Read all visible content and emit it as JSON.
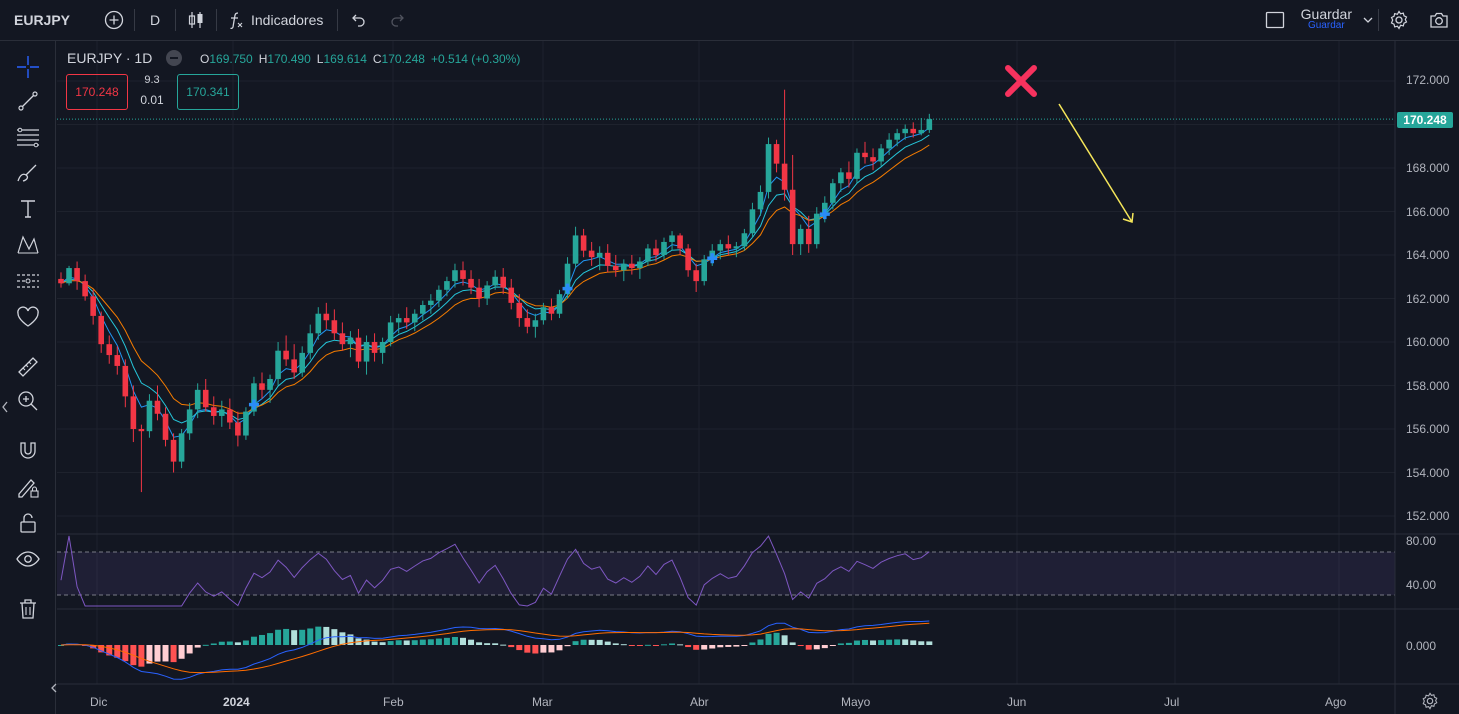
{
  "topbar": {
    "symbol": "EURJPY",
    "interval": "D",
    "indicators_label": "Indicadores",
    "save_label": "Guardar",
    "save_sublabel": "Guardar"
  },
  "legend": {
    "title": "EURJPY · 1D",
    "open_label": "O",
    "open": "169.750",
    "high_label": "H",
    "high": "170.490",
    "low_label": "L",
    "low": "169.614",
    "close_label": "C",
    "close": "170.248",
    "change": "+0.514 (+0.30%)",
    "sell_price": "170.248",
    "buy_price": "170.341",
    "spread_top": "9.3",
    "spread_bottom": "0.01"
  },
  "price_axis": [
    "172.000",
    "168.000",
    "166.000",
    "164.000",
    "162.000",
    "160.000",
    "158.000",
    "156.000",
    "154.000",
    "152.000"
  ],
  "last_price_tag": "170.248",
  "rsi_axis": [
    "80.00",
    "40.00"
  ],
  "macd_axis": [
    "0.000"
  ],
  "time_axis": [
    "Dic",
    "2024",
    "Feb",
    "Mar",
    "Abr",
    "Mayo",
    "Jun",
    "Jul",
    "Ago"
  ],
  "colors": {
    "up": "#26a69a",
    "down": "#f23645",
    "bg": "#131722",
    "annotation_x": "#f7325e",
    "annotation_arrow": "#f5e65a"
  },
  "chart_data": {
    "type": "candlestick",
    "symbol": "EURJPY",
    "interval": "1D",
    "ylim": [
      151,
      173
    ],
    "ohlc": [
      {
        "o": 162.9,
        "h": 163.2,
        "l": 162.5,
        "c": 162.7
      },
      {
        "o": 162.7,
        "h": 163.5,
        "l": 162.6,
        "c": 163.4
      },
      {
        "o": 163.4,
        "h": 163.7,
        "l": 162.4,
        "c": 162.8
      },
      {
        "o": 162.8,
        "h": 163.1,
        "l": 161.9,
        "c": 162.1
      },
      {
        "o": 162.1,
        "h": 162.4,
        "l": 160.8,
        "c": 161.2
      },
      {
        "o": 161.2,
        "h": 161.4,
        "l": 159.5,
        "c": 159.9
      },
      {
        "o": 159.9,
        "h": 160.3,
        "l": 159.0,
        "c": 159.4
      },
      {
        "o": 159.4,
        "h": 159.8,
        "l": 158.5,
        "c": 158.9
      },
      {
        "o": 158.9,
        "h": 159.2,
        "l": 157.0,
        "c": 157.5
      },
      {
        "o": 157.5,
        "h": 158.0,
        "l": 155.4,
        "c": 156.0
      },
      {
        "o": 156.0,
        "h": 156.2,
        "l": 153.1,
        "c": 155.9
      },
      {
        "o": 155.9,
        "h": 157.6,
        "l": 155.6,
        "c": 157.3
      },
      {
        "o": 157.3,
        "h": 158.0,
        "l": 156.4,
        "c": 156.7
      },
      {
        "o": 156.7,
        "h": 157.0,
        "l": 155.2,
        "c": 155.5
      },
      {
        "o": 155.5,
        "h": 155.8,
        "l": 154.0,
        "c": 154.5
      },
      {
        "o": 154.5,
        "h": 156.0,
        "l": 154.2,
        "c": 155.8
      },
      {
        "o": 155.8,
        "h": 157.2,
        "l": 155.5,
        "c": 156.9
      },
      {
        "o": 156.9,
        "h": 158.1,
        "l": 156.5,
        "c": 157.8
      },
      {
        "o": 157.8,
        "h": 158.3,
        "l": 156.8,
        "c": 157.0
      },
      {
        "o": 157.0,
        "h": 157.5,
        "l": 156.2,
        "c": 156.6
      },
      {
        "o": 156.6,
        "h": 157.3,
        "l": 156.1,
        "c": 156.9
      },
      {
        "o": 156.9,
        "h": 157.4,
        "l": 156.0,
        "c": 156.3
      },
      {
        "o": 156.3,
        "h": 156.8,
        "l": 155.2,
        "c": 155.7
      },
      {
        "o": 155.7,
        "h": 157.0,
        "l": 155.5,
        "c": 156.8
      },
      {
        "o": 156.8,
        "h": 158.4,
        "l": 156.6,
        "c": 158.1
      },
      {
        "o": 158.1,
        "h": 158.6,
        "l": 157.4,
        "c": 157.8
      },
      {
        "o": 157.8,
        "h": 158.5,
        "l": 157.2,
        "c": 158.3
      },
      {
        "o": 158.3,
        "h": 160.0,
        "l": 158.0,
        "c": 159.6
      },
      {
        "o": 159.6,
        "h": 160.3,
        "l": 158.9,
        "c": 159.2
      },
      {
        "o": 159.2,
        "h": 159.9,
        "l": 158.3,
        "c": 158.6
      },
      {
        "o": 158.6,
        "h": 159.8,
        "l": 158.4,
        "c": 159.5
      },
      {
        "o": 159.5,
        "h": 160.8,
        "l": 159.2,
        "c": 160.4
      },
      {
        "o": 160.4,
        "h": 161.6,
        "l": 160.1,
        "c": 161.3
      },
      {
        "o": 161.3,
        "h": 161.8,
        "l": 160.6,
        "c": 161.0
      },
      {
        "o": 161.0,
        "h": 161.5,
        "l": 160.1,
        "c": 160.4
      },
      {
        "o": 160.4,
        "h": 160.9,
        "l": 159.6,
        "c": 159.9
      },
      {
        "o": 159.9,
        "h": 160.5,
        "l": 159.3,
        "c": 160.2
      },
      {
        "o": 160.2,
        "h": 160.6,
        "l": 158.8,
        "c": 159.1
      },
      {
        "o": 159.1,
        "h": 160.3,
        "l": 158.5,
        "c": 160.0
      },
      {
        "o": 160.0,
        "h": 160.4,
        "l": 159.1,
        "c": 159.5
      },
      {
        "o": 159.5,
        "h": 160.2,
        "l": 159.0,
        "c": 160.0
      },
      {
        "o": 160.0,
        "h": 161.2,
        "l": 159.8,
        "c": 160.9
      },
      {
        "o": 160.9,
        "h": 161.3,
        "l": 160.4,
        "c": 161.1
      },
      {
        "o": 161.1,
        "h": 161.6,
        "l": 160.6,
        "c": 160.9
      },
      {
        "o": 160.9,
        "h": 161.5,
        "l": 160.5,
        "c": 161.3
      },
      {
        "o": 161.3,
        "h": 161.9,
        "l": 161.0,
        "c": 161.7
      },
      {
        "o": 161.7,
        "h": 162.2,
        "l": 161.3,
        "c": 161.9
      },
      {
        "o": 161.9,
        "h": 162.6,
        "l": 161.6,
        "c": 162.4
      },
      {
        "o": 162.4,
        "h": 163.0,
        "l": 162.1,
        "c": 162.8
      },
      {
        "o": 162.8,
        "h": 163.6,
        "l": 162.5,
        "c": 163.3
      },
      {
        "o": 163.3,
        "h": 163.7,
        "l": 162.6,
        "c": 162.9
      },
      {
        "o": 162.9,
        "h": 163.3,
        "l": 162.2,
        "c": 162.5
      },
      {
        "o": 162.5,
        "h": 162.9,
        "l": 161.6,
        "c": 162.0
      },
      {
        "o": 162.0,
        "h": 162.8,
        "l": 161.7,
        "c": 162.6
      },
      {
        "o": 162.6,
        "h": 163.3,
        "l": 162.4,
        "c": 163.0
      },
      {
        "o": 163.0,
        "h": 163.4,
        "l": 162.2,
        "c": 162.5
      },
      {
        "o": 162.5,
        "h": 162.9,
        "l": 161.5,
        "c": 161.8
      },
      {
        "o": 161.8,
        "h": 162.2,
        "l": 160.7,
        "c": 161.1
      },
      {
        "o": 161.1,
        "h": 161.5,
        "l": 160.4,
        "c": 160.7
      },
      {
        "o": 160.7,
        "h": 161.3,
        "l": 160.2,
        "c": 161.0
      },
      {
        "o": 161.0,
        "h": 161.8,
        "l": 160.8,
        "c": 161.6
      },
      {
        "o": 161.6,
        "h": 162.0,
        "l": 161.0,
        "c": 161.3
      },
      {
        "o": 161.3,
        "h": 162.4,
        "l": 161.1,
        "c": 162.2
      },
      {
        "o": 162.2,
        "h": 163.9,
        "l": 162.0,
        "c": 163.6
      },
      {
        "o": 163.6,
        "h": 165.3,
        "l": 163.4,
        "c": 164.9
      },
      {
        "o": 164.9,
        "h": 165.2,
        "l": 163.9,
        "c": 164.2
      },
      {
        "o": 164.2,
        "h": 164.6,
        "l": 163.5,
        "c": 163.9
      },
      {
        "o": 163.9,
        "h": 164.4,
        "l": 163.3,
        "c": 164.1
      },
      {
        "o": 164.1,
        "h": 164.5,
        "l": 163.2,
        "c": 163.5
      },
      {
        "o": 163.5,
        "h": 164.0,
        "l": 163.0,
        "c": 163.3
      },
      {
        "o": 163.3,
        "h": 163.8,
        "l": 162.8,
        "c": 163.6
      },
      {
        "o": 163.6,
        "h": 164.0,
        "l": 163.1,
        "c": 163.4
      },
      {
        "o": 163.4,
        "h": 163.9,
        "l": 162.9,
        "c": 163.7
      },
      {
        "o": 163.7,
        "h": 164.5,
        "l": 163.5,
        "c": 164.3
      },
      {
        "o": 164.3,
        "h": 164.7,
        "l": 163.7,
        "c": 164.0
      },
      {
        "o": 164.0,
        "h": 164.8,
        "l": 163.8,
        "c": 164.6
      },
      {
        "o": 164.6,
        "h": 165.1,
        "l": 164.2,
        "c": 164.9
      },
      {
        "o": 164.9,
        "h": 165.0,
        "l": 164.0,
        "c": 164.3
      },
      {
        "o": 164.3,
        "h": 164.5,
        "l": 163.0,
        "c": 163.3
      },
      {
        "o": 163.3,
        "h": 163.6,
        "l": 162.3,
        "c": 162.8
      },
      {
        "o": 162.8,
        "h": 164.0,
        "l": 162.6,
        "c": 163.8
      },
      {
        "o": 163.8,
        "h": 164.5,
        "l": 163.5,
        "c": 164.2
      },
      {
        "o": 164.2,
        "h": 164.7,
        "l": 163.8,
        "c": 164.5
      },
      {
        "o": 164.5,
        "h": 164.9,
        "l": 164.0,
        "c": 164.3
      },
      {
        "o": 164.3,
        "h": 164.6,
        "l": 163.9,
        "c": 164.4
      },
      {
        "o": 164.4,
        "h": 165.2,
        "l": 164.2,
        "c": 165.0
      },
      {
        "o": 165.0,
        "h": 166.4,
        "l": 164.8,
        "c": 166.1
      },
      {
        "o": 166.1,
        "h": 167.2,
        "l": 165.8,
        "c": 166.9
      },
      {
        "o": 166.9,
        "h": 169.4,
        "l": 166.6,
        "c": 169.1
      },
      {
        "o": 169.1,
        "h": 169.3,
        "l": 167.8,
        "c": 168.2
      },
      {
        "o": 168.2,
        "h": 171.6,
        "l": 166.5,
        "c": 167.0
      },
      {
        "o": 167.0,
        "h": 168.6,
        "l": 164.0,
        "c": 164.5
      },
      {
        "o": 164.5,
        "h": 165.4,
        "l": 164.0,
        "c": 165.2
      },
      {
        "o": 165.2,
        "h": 165.8,
        "l": 164.1,
        "c": 164.5
      },
      {
        "o": 164.5,
        "h": 166.2,
        "l": 164.3,
        "c": 165.9
      },
      {
        "o": 165.9,
        "h": 166.7,
        "l": 165.5,
        "c": 166.4
      },
      {
        "o": 166.4,
        "h": 167.5,
        "l": 166.1,
        "c": 167.3
      },
      {
        "o": 167.3,
        "h": 168.0,
        "l": 166.9,
        "c": 167.8
      },
      {
        "o": 167.8,
        "h": 168.3,
        "l": 167.1,
        "c": 167.5
      },
      {
        "o": 167.5,
        "h": 168.9,
        "l": 167.3,
        "c": 168.7
      },
      {
        "o": 168.7,
        "h": 169.2,
        "l": 168.2,
        "c": 168.5
      },
      {
        "o": 168.5,
        "h": 168.9,
        "l": 167.9,
        "c": 168.3
      },
      {
        "o": 168.3,
        "h": 169.1,
        "l": 168.1,
        "c": 168.9
      },
      {
        "o": 168.9,
        "h": 169.6,
        "l": 168.6,
        "c": 169.3
      },
      {
        "o": 169.3,
        "h": 169.8,
        "l": 169.0,
        "c": 169.6
      },
      {
        "o": 169.6,
        "h": 170.0,
        "l": 169.3,
        "c": 169.8
      },
      {
        "o": 169.8,
        "h": 170.1,
        "l": 169.4,
        "c": 169.6
      },
      {
        "o": 169.6,
        "h": 170.3,
        "l": 169.5,
        "c": 169.75
      },
      {
        "o": 169.75,
        "h": 170.49,
        "l": 169.614,
        "c": 170.248
      }
    ]
  }
}
